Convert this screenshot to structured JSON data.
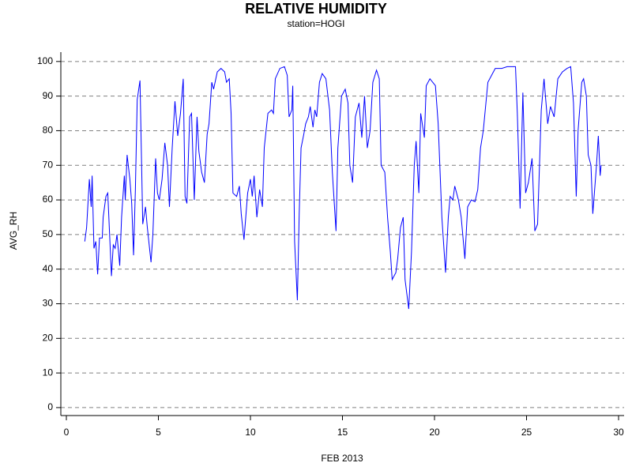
{
  "chart_data": {
    "type": "line",
    "title": "RELATIVE HUMIDITY",
    "subtitle": "station=HOGI",
    "x_label": "FEB 2013",
    "y_label": "AVG_RH",
    "x": [
      1.0,
      1.1,
      1.25,
      1.35,
      1.4,
      1.5,
      1.6,
      1.7,
      1.8,
      1.95,
      2.0,
      2.15,
      2.25,
      2.45,
      2.55,
      2.65,
      2.75,
      2.9,
      3.0,
      3.15,
      3.2,
      3.3,
      3.45,
      3.55,
      3.65,
      3.75,
      3.85,
      4.0,
      4.1,
      4.15,
      4.3,
      4.4,
      4.6,
      4.7,
      4.85,
      4.95,
      5.05,
      5.2,
      5.35,
      5.5,
      5.6,
      5.75,
      5.9,
      6.05,
      6.2,
      6.35,
      6.45,
      6.55,
      6.7,
      6.8,
      6.95,
      7.1,
      7.2,
      7.35,
      7.5,
      7.65,
      7.75,
      7.9,
      8.0,
      8.2,
      8.4,
      8.6,
      8.7,
      8.85,
      8.95,
      9.05,
      9.25,
      9.4,
      9.5,
      9.65,
      9.85,
      10.0,
      10.1,
      10.2,
      10.35,
      10.5,
      10.65,
      10.75,
      10.95,
      11.15,
      11.25,
      11.35,
      11.6,
      11.85,
      12.0,
      12.1,
      12.25,
      12.3,
      12.4,
      12.55,
      12.65,
      12.75,
      12.9,
      13.0,
      13.15,
      13.25,
      13.4,
      13.5,
      13.6,
      13.75,
      13.9,
      14.1,
      14.3,
      14.45,
      14.65,
      14.75,
      14.95,
      15.15,
      15.3,
      15.4,
      15.55,
      15.7,
      15.9,
      16.05,
      16.2,
      16.35,
      16.5,
      16.65,
      16.85,
      17.0,
      17.1,
      17.3,
      17.45,
      17.6,
      17.7,
      17.9,
      18.0,
      18.15,
      18.3,
      18.4,
      18.6,
      18.75,
      18.9,
      19.0,
      19.15,
      19.25,
      19.45,
      19.55,
      19.75,
      19.9,
      20.05,
      20.2,
      20.4,
      20.6,
      20.75,
      20.85,
      21.0,
      21.1,
      21.3,
      21.45,
      21.65,
      21.8,
      22.0,
      22.2,
      22.35,
      22.5,
      22.65,
      22.9,
      23.1,
      23.3,
      23.65,
      23.95,
      24.4,
      24.5,
      24.65,
      24.8,
      24.95,
      25.1,
      25.3,
      25.45,
      25.6,
      25.8,
      25.95,
      26.15,
      26.3,
      26.5,
      26.7,
      26.95,
      27.2,
      27.4,
      27.55,
      27.7,
      27.8,
      28.0,
      28.1,
      28.25,
      28.35,
      28.5,
      28.6,
      28.8,
      28.9,
      29.0,
      29.05
    ],
    "series": [
      {
        "name": "AVG_RH",
        "color": "#0000ff",
        "values": [
          48,
          52,
          66,
          58,
          67,
          46,
          48,
          38.5,
          49,
          49,
          55,
          61,
          62,
          38,
          47,
          46,
          50,
          41,
          55,
          67,
          60,
          73,
          66,
          59,
          44,
          63,
          89,
          94.5,
          67,
          53,
          58,
          52,
          42,
          50,
          72,
          62,
          60,
          66,
          76.5,
          70,
          58,
          75,
          88.5,
          78.5,
          85,
          95,
          61,
          59,
          84,
          85,
          60,
          84,
          74,
          68,
          65,
          79,
          82,
          94,
          92,
          97,
          98,
          97,
          94,
          95,
          85,
          62,
          61,
          64,
          56,
          48.5,
          62,
          66,
          61,
          67,
          55,
          63,
          58,
          75,
          85,
          86,
          85,
          95,
          98,
          98.5,
          96,
          84,
          86,
          93,
          48,
          31,
          56,
          75,
          79,
          82,
          84,
          87,
          81,
          86,
          84,
          94,
          96.5,
          95,
          86,
          68,
          51,
          75,
          90,
          92,
          88,
          70,
          65,
          84,
          88,
          78,
          90,
          75,
          80,
          94,
          97.5,
          95,
          70,
          68,
          55,
          45,
          37,
          39,
          43,
          52,
          55,
          37,
          28.5,
          45,
          70,
          77,
          62,
          85,
          78,
          93,
          95,
          94,
          93,
          82,
          55,
          39,
          55,
          61,
          60,
          64,
          60,
          55,
          43,
          58,
          60,
          59.5,
          63,
          75,
          80,
          94,
          96,
          98,
          98,
          98.5,
          98.5,
          85,
          57.5,
          91,
          62,
          65,
          72,
          51,
          53,
          86,
          95,
          82,
          87,
          84,
          95,
          97,
          98,
          98.5,
          88,
          61,
          80,
          94,
          95,
          90,
          73,
          70,
          56,
          70,
          78.5,
          67,
          70
        ]
      }
    ],
    "xlim": [
      -0.3,
      30.3
    ],
    "ylim": [
      -2.3,
      102.7
    ],
    "xticks": [
      0,
      5,
      10,
      15,
      20,
      25,
      30
    ],
    "yticks": [
      0,
      10,
      20,
      30,
      40,
      50,
      60,
      70,
      80,
      90,
      100
    ],
    "grid": true
  }
}
